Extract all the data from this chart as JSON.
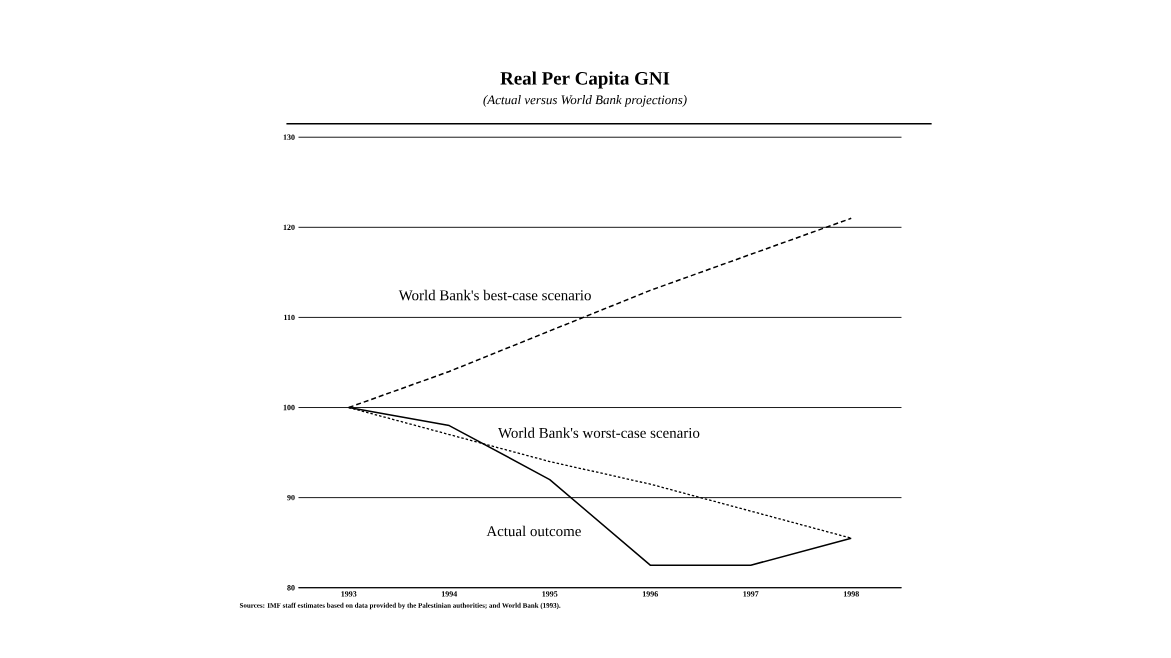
{
  "chart_data": {
    "type": "line",
    "title": "Real Per Capita GNI",
    "subtitle": "(Actual versus World Bank projections)",
    "categories": [
      "1993",
      "1994",
      "1995",
      "1996",
      "1997",
      "1998"
    ],
    "series": [
      {
        "name": "World Bank's best-case scenario",
        "color": "#000000",
        "line_style": "dashed",
        "values": [
          100,
          104,
          108.5,
          113,
          117,
          121
        ]
      },
      {
        "name": "World Bank's worst-case scenario",
        "color": "#000000",
        "line_style": "dotted",
        "values": [
          100,
          97,
          94,
          91.5,
          88.5,
          85.5
        ]
      },
      {
        "name": "Actual outcome",
        "color": "#000000",
        "line_style": "solid",
        "values": [
          100,
          98,
          92,
          82.5,
          82.5,
          85.5
        ]
      }
    ],
    "ylim": [
      80,
      131.5
    ],
    "yticks": [
      80,
      90,
      100,
      110,
      120,
      130
    ],
    "grid": "y",
    "marker": "none",
    "annotations": [
      "Sources: IMF staff estimates based on data provided by the Palestinian authorities; and World Bank (1993)."
    ]
  }
}
